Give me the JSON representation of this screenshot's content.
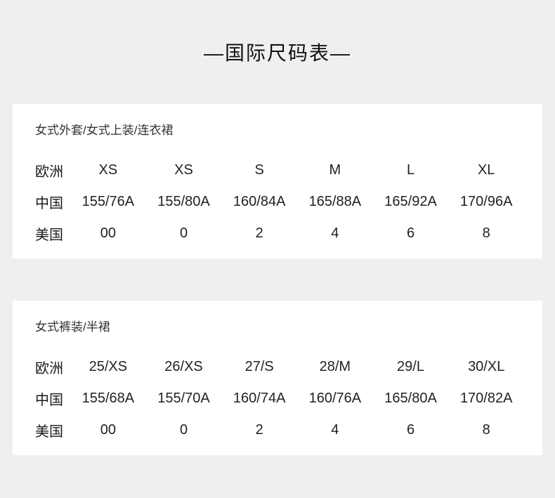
{
  "page": {
    "title": "—国际尺码表—",
    "colors": {
      "background": "#efefef",
      "card_background": "#ffffff",
      "text": "#1a1a1a"
    }
  },
  "tables": [
    {
      "title": "女式外套/女式上装/连衣裙",
      "rows": [
        {
          "label": "欧洲",
          "values": [
            "XS",
            "XS",
            "S",
            "M",
            "L",
            "XL"
          ]
        },
        {
          "label": "中国",
          "values": [
            "155/76A",
            "155/80A",
            "160/84A",
            "165/88A",
            "165/92A",
            "170/96A"
          ]
        },
        {
          "label": "美国",
          "values": [
            "00",
            "0",
            "2",
            "4",
            "6",
            "8"
          ]
        }
      ]
    },
    {
      "title": "女式裤装/半裙",
      "rows": [
        {
          "label": "欧洲",
          "values": [
            "25/XS",
            "26/XS",
            "27/S",
            "28/M",
            "29/L",
            "30/XL"
          ]
        },
        {
          "label": "中国",
          "values": [
            "155/68A",
            "155/70A",
            "160/74A",
            "160/76A",
            "165/80A",
            "170/82A"
          ]
        },
        {
          "label": "美国",
          "values": [
            "00",
            "0",
            "2",
            "4",
            "6",
            "8"
          ]
        }
      ]
    }
  ]
}
